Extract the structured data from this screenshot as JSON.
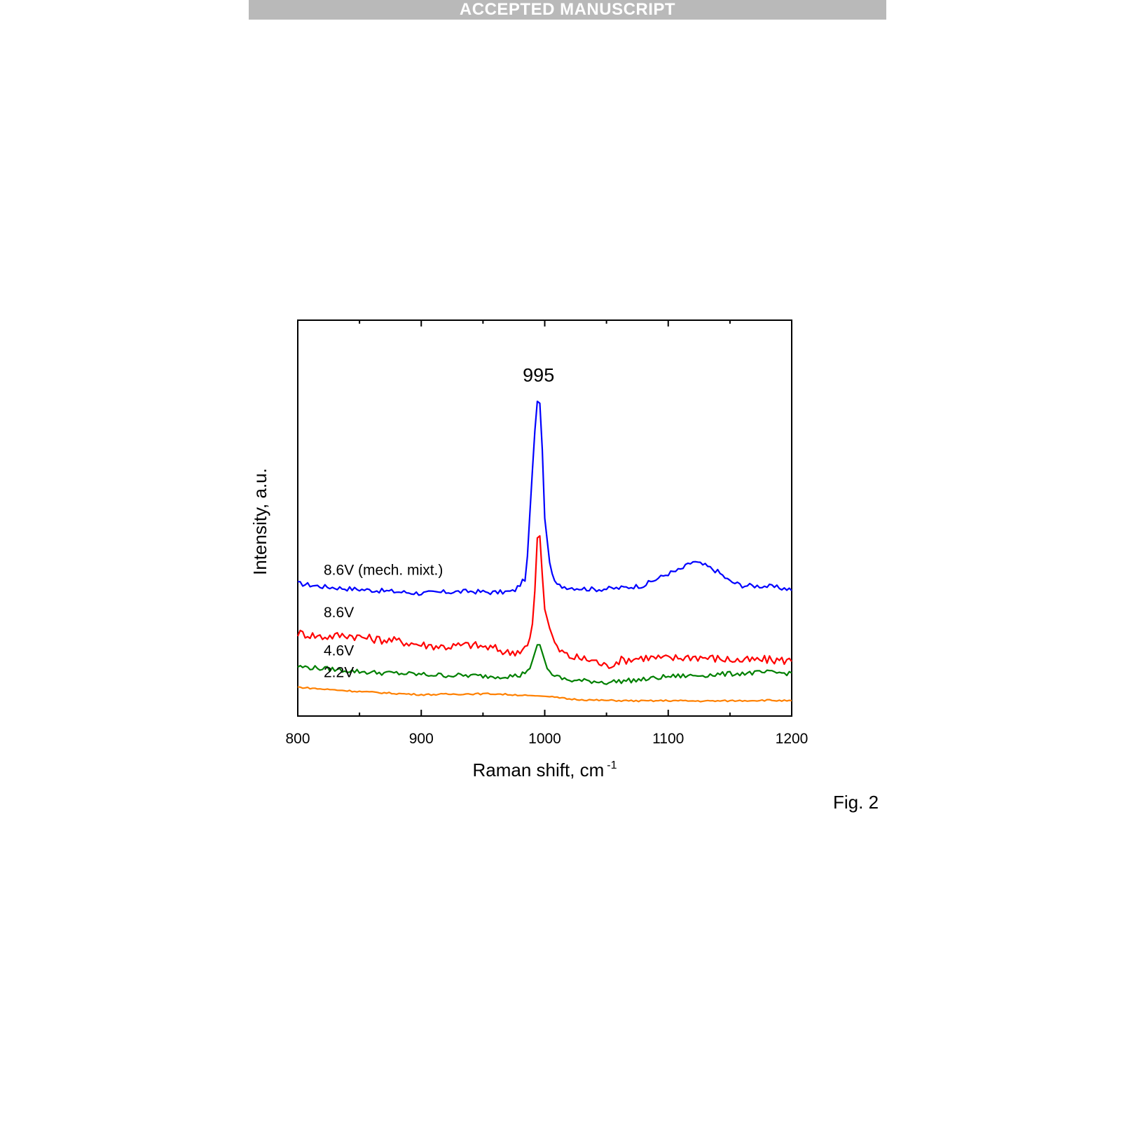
{
  "banner": {
    "text": "ACCEPTED MANUSCRIPT"
  },
  "caption": {
    "text": "Fig. 2"
  },
  "chart_data": {
    "type": "line",
    "title": "",
    "xlabel": "Raman shift, cm",
    "xlabel_superscript": "-1",
    "ylabel": "Intensity, a.u.",
    "xlim": [
      800,
      1200
    ],
    "ylim": [
      0,
      1
    ],
    "x_ticks": [
      800,
      900,
      1000,
      1100,
      1200
    ],
    "y_tick_labels_shown": false,
    "grid": false,
    "legend": "none (inline labels)",
    "annotations": [
      {
        "text": "995",
        "x": 995
      }
    ],
    "series": [
      {
        "name": "8.6V (mech. mixt.)",
        "color": "#0000ff",
        "x": [
          800,
          820,
          840,
          860,
          880,
          900,
          920,
          940,
          960,
          975,
          985,
          990,
          993,
          995,
          997,
          1000,
          1005,
          1010,
          1020,
          1040,
          1060,
          1080,
          1100,
          1110,
          1120,
          1130,
          1140,
          1150,
          1160,
          1180,
          1200
        ],
        "y": [
          0.335,
          0.327,
          0.322,
          0.318,
          0.314,
          0.31,
          0.313,
          0.315,
          0.312,
          0.315,
          0.35,
          0.62,
          0.77,
          0.82,
          0.76,
          0.5,
          0.36,
          0.33,
          0.325,
          0.32,
          0.323,
          0.33,
          0.36,
          0.37,
          0.39,
          0.38,
          0.365,
          0.34,
          0.33,
          0.328,
          0.32
        ]
      },
      {
        "name": "8.6V",
        "color": "#ff0000",
        "x": [
          800,
          820,
          840,
          860,
          880,
          900,
          920,
          940,
          960,
          970,
          980,
          987,
          991,
          994,
          995,
          997,
          1000,
          1005,
          1010,
          1020,
          1040,
          1050,
          1060,
          1080,
          1100,
          1120,
          1140,
          1160,
          1180,
          1200
        ],
        "y": [
          0.21,
          0.2,
          0.205,
          0.195,
          0.19,
          0.18,
          0.175,
          0.18,
          0.17,
          0.16,
          0.165,
          0.18,
          0.25,
          0.45,
          0.51,
          0.4,
          0.27,
          0.21,
          0.17,
          0.15,
          0.14,
          0.125,
          0.14,
          0.148,
          0.145,
          0.15,
          0.145,
          0.14,
          0.142,
          0.14
        ]
      },
      {
        "name": "4.6V",
        "color": "#008000",
        "x": [
          800,
          820,
          840,
          860,
          880,
          900,
          920,
          940,
          960,
          980,
          988,
          992,
          995,
          998,
          1002,
          1008,
          1020,
          1040,
          1050,
          1060,
          1080,
          1100,
          1120,
          1140,
          1160,
          1180,
          1200
        ],
        "y": [
          0.125,
          0.12,
          0.115,
          0.11,
          0.108,
          0.105,
          0.103,
          0.102,
          0.1,
          0.102,
          0.12,
          0.16,
          0.19,
          0.16,
          0.12,
          0.1,
          0.09,
          0.088,
          0.085,
          0.088,
          0.092,
          0.1,
          0.102,
          0.105,
          0.108,
          0.11,
          0.108
        ]
      },
      {
        "name": "2.2V",
        "color": "#ff8000",
        "x": [
          800,
          820,
          840,
          860,
          880,
          900,
          920,
          940,
          960,
          980,
          1000,
          1020,
          1040,
          1060,
          1080,
          1100,
          1120,
          1140,
          1160,
          1180,
          1200
        ],
        "y": [
          0.073,
          0.068,
          0.064,
          0.06,
          0.057,
          0.054,
          0.055,
          0.056,
          0.056,
          0.053,
          0.05,
          0.043,
          0.04,
          0.039,
          0.038,
          0.039,
          0.038,
          0.038,
          0.039,
          0.04,
          0.038
        ]
      }
    ]
  }
}
